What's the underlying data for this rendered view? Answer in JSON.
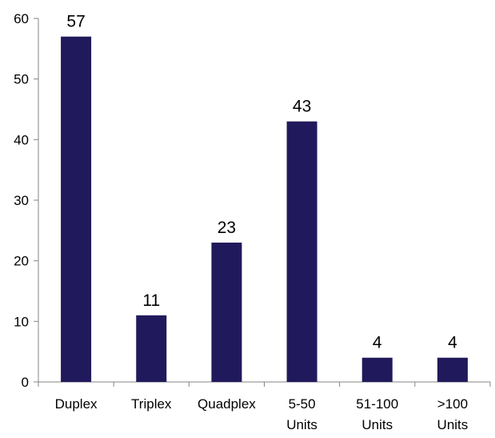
{
  "chart_data": {
    "type": "bar",
    "title": "",
    "xlabel": "",
    "ylabel": "",
    "categories": [
      [
        "Duplex"
      ],
      [
        "Triplex"
      ],
      [
        "Quadplex"
      ],
      [
        "5-50",
        "Units"
      ],
      [
        "51-100",
        "Units"
      ],
      [
        ">100",
        "Units"
      ]
    ],
    "values": [
      57,
      11,
      23,
      43,
      4,
      4
    ],
    "ylim": [
      0,
      60
    ],
    "yticks": [
      0,
      10,
      20,
      30,
      40,
      50,
      60
    ],
    "grid": false,
    "legend": "none",
    "bar_color": "#201A5C",
    "axis_color": "#868686"
  }
}
